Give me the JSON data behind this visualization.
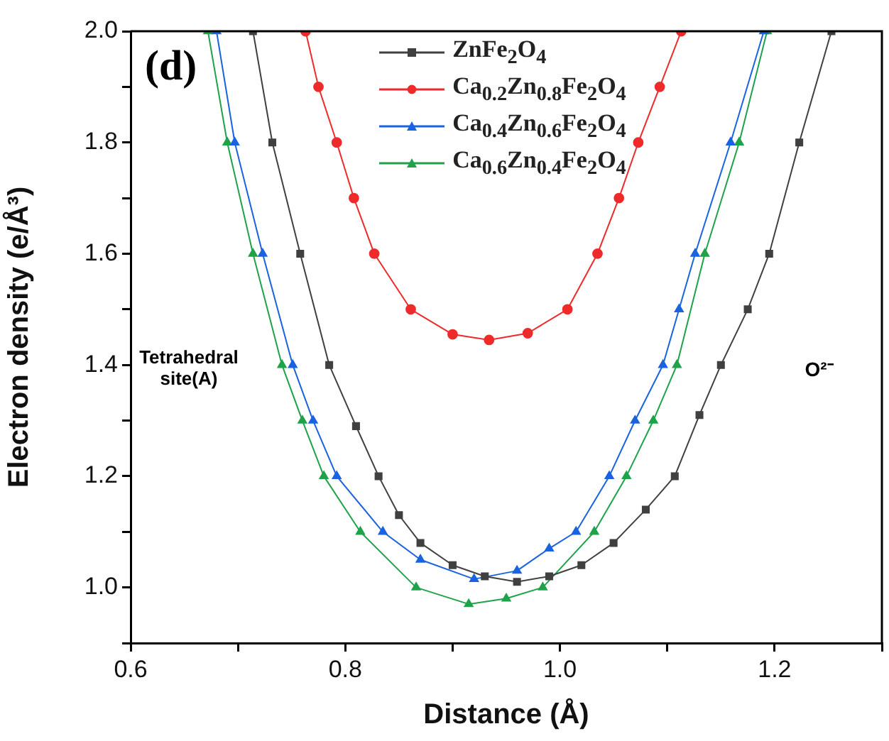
{
  "chart_data": {
    "type": "line",
    "xlabel": "Distance (Å)",
    "ylabel": "Electron density (e/Å³)",
    "xlim": [
      0.6,
      1.3
    ],
    "ylim": [
      0.9,
      2.0
    ],
    "xticks": [
      0.6,
      {
        "value": 0.7,
        "label": null
      },
      0.8,
      {
        "value": 0.9,
        "label": null
      },
      {
        "value": 1,
        "label": "1.0"
      },
      {
        "value": 1.1,
        "label": null
      },
      1.2,
      {
        "value": 1.3,
        "label": null
      }
    ],
    "yticks": [
      {
        "value": 0.9,
        "label": null
      },
      {
        "value": 1,
        "label": "1.0"
      },
      {
        "value": 1.1,
        "label": null
      },
      1.2,
      {
        "value": 1.3,
        "label": null
      },
      1.4,
      {
        "value": 1.5,
        "label": null
      },
      1.6,
      {
        "value": 1.7,
        "label": null
      },
      1.8,
      {
        "value": 1.9,
        "label": null
      },
      {
        "value": 2,
        "label": "2.0"
      }
    ],
    "grid": false,
    "legend": "top",
    "line_style": "solid",
    "annotations": [
      "(d)",
      "Tetrahedral site(A)",
      "O²⁻"
    ],
    "series": [
      {
        "name": "ZnFe$_{2}$O$_{4}$",
        "color": "#404040",
        "marker": "square",
        "x": [
          0.714,
          0.732,
          0.758,
          0.785,
          0.81,
          0.831,
          0.85,
          0.87,
          0.9,
          0.93,
          0.96,
          0.99,
          1.02,
          1.05,
          1.08,
          1.107,
          1.13,
          1.15,
          1.175,
          1.195,
          1.223,
          1.253
        ],
        "values": [
          2.0,
          1.8,
          1.6,
          1.4,
          1.29,
          1.2,
          1.13,
          1.08,
          1.04,
          1.02,
          1.01,
          1.02,
          1.04,
          1.08,
          1.14,
          1.2,
          1.31,
          1.4,
          1.5,
          1.6,
          1.8,
          2.0
        ]
      },
      {
        "name": "Ca$_{0.2}$Zn$_{0.8}$Fe$_{2}$O$_{4}$",
        "color": "#ee2a2a",
        "marker": "circle",
        "x": [
          0.763,
          0.775,
          0.792,
          0.808,
          0.827,
          0.861,
          0.9,
          0.934,
          0.97,
          1.007,
          1.035,
          1.055,
          1.073,
          1.093,
          1.113
        ],
        "values": [
          2.0,
          1.9,
          1.8,
          1.7,
          1.6,
          1.5,
          1.455,
          1.445,
          1.457,
          1.5,
          1.6,
          1.7,
          1.8,
          1.9,
          2.0
        ]
      },
      {
        "name": "Ca$_{0.4}$Zn$_{0.6}$Fe$_{2}$O$_{4}$",
        "color": "#1a63e0",
        "marker": "triangle",
        "x": [
          0.68,
          0.697,
          0.723,
          0.751,
          0.77,
          0.792,
          0.835,
          0.87,
          0.92,
          0.96,
          0.99,
          1.015,
          1.046,
          1.07,
          1.096,
          1.111,
          1.126,
          1.159,
          1.19
        ],
        "values": [
          2.0,
          1.8,
          1.6,
          1.4,
          1.3,
          1.2,
          1.1,
          1.05,
          1.015,
          1.03,
          1.07,
          1.1,
          1.2,
          1.3,
          1.4,
          1.5,
          1.6,
          1.8,
          2.0
        ]
      },
      {
        "name": "Ca$_{0.6}$Zn$_{0.4}$Fe$_{2}$O$_{4}$",
        "color": "#1ea24a",
        "marker": "triangle",
        "x": [
          0.672,
          0.69,
          0.714,
          0.741,
          0.76,
          0.78,
          0.814,
          0.866,
          0.915,
          0.95,
          0.984,
          1.032,
          1.062,
          1.087,
          1.109,
          1.135,
          1.167,
          1.193
        ],
        "values": [
          2.0,
          1.8,
          1.6,
          1.4,
          1.3,
          1.2,
          1.1,
          1.0,
          0.97,
          0.98,
          1.0,
          1.1,
          1.2,
          1.3,
          1.4,
          1.6,
          1.8,
          2.0
        ]
      }
    ]
  }
}
